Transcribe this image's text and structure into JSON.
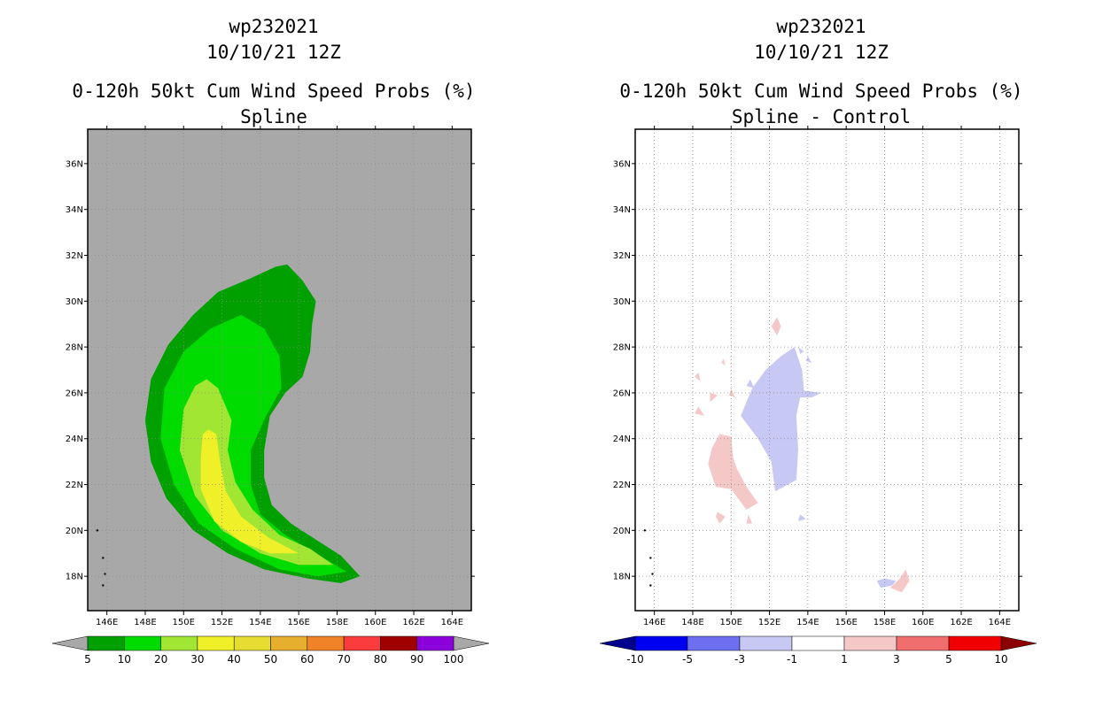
{
  "chart_data": [
    {
      "type": "contour_map",
      "storm_id": "wp232021",
      "date": "10/10/21 12Z",
      "title": "0-120h 50kt Cum Wind Speed Probs (%)",
      "subtitle": "Spline",
      "xlim": [
        145,
        165
      ],
      "ylim": [
        16.5,
        37.5
      ],
      "x_ticks": [
        "146E",
        "148E",
        "150E",
        "152E",
        "154E",
        "156E",
        "158E",
        "160E",
        "162E",
        "164E"
      ],
      "x_tick_values": [
        146,
        148,
        150,
        152,
        154,
        156,
        158,
        160,
        162,
        164
      ],
      "y_ticks": [
        "36N",
        "34N",
        "32N",
        "30N",
        "28N",
        "26N",
        "24N",
        "22N",
        "20N",
        "18N"
      ],
      "y_tick_values": [
        36,
        34,
        32,
        30,
        28,
        26,
        24,
        22,
        20,
        18
      ],
      "grid": true,
      "background": "#a8a8a8",
      "colorbar": {
        "labels": [
          "5",
          "10",
          "20",
          "30",
          "40",
          "50",
          "60",
          "70",
          "80",
          "90",
          "100"
        ],
        "colors": [
          "#00a000",
          "#00dc00",
          "#a0e632",
          "#f0f028",
          "#e6dc32",
          "#e6af2d",
          "#f08228",
          "#fa3c3c",
          "#a00000",
          "#8c00dc"
        ],
        "extension_color": "#a8a8a8"
      },
      "contours": [
        {
          "level": 5,
          "color": "#00a000",
          "polygon": [
            [
              155.4,
              31.6
            ],
            [
              156.2,
              30.9
            ],
            [
              156.9,
              30.0
            ],
            [
              156.7,
              29.0
            ],
            [
              156.6,
              27.8
            ],
            [
              156.2,
              26.7
            ],
            [
              155.3,
              26.0
            ],
            [
              154.5,
              25.0
            ],
            [
              154.2,
              23.5
            ],
            [
              154.2,
              22.3
            ],
            [
              154.6,
              21.1
            ],
            [
              155.6,
              20.3
            ],
            [
              156.9,
              19.6
            ],
            [
              158.2,
              18.9
            ],
            [
              159.2,
              18.0
            ],
            [
              158.2,
              17.7
            ],
            [
              156.5,
              17.9
            ],
            [
              154.2,
              18.3
            ],
            [
              152.3,
              19.0
            ],
            [
              150.5,
              20.0
            ],
            [
              149.1,
              21.4
            ],
            [
              148.3,
              23.0
            ],
            [
              148.0,
              24.8
            ],
            [
              148.3,
              26.6
            ],
            [
              149.2,
              28.1
            ],
            [
              150.5,
              29.4
            ],
            [
              151.8,
              30.4
            ],
            [
              153.5,
              31.0
            ],
            [
              154.8,
              31.5
            ]
          ]
        },
        {
          "level": 10,
          "color": "#00dc00",
          "polygon": [
            [
              153.0,
              29.4
            ],
            [
              154.2,
              28.8
            ],
            [
              155.0,
              27.6
            ],
            [
              155.1,
              26.2
            ],
            [
              154.3,
              25.0
            ],
            [
              153.5,
              23.5
            ],
            [
              153.5,
              22.0
            ],
            [
              154.0,
              20.7
            ],
            [
              155.3,
              19.8
            ],
            [
              156.9,
              19.0
            ],
            [
              158.5,
              18.2
            ],
            [
              157.0,
              18.0
            ],
            [
              155.0,
              18.3
            ],
            [
              152.7,
              19.2
            ],
            [
              150.8,
              20.3
            ],
            [
              149.5,
              22.0
            ],
            [
              148.8,
              24.0
            ],
            [
              149.0,
              26.2
            ],
            [
              150.0,
              27.8
            ],
            [
              151.4,
              28.8
            ]
          ]
        },
        {
          "level": 20,
          "color": "#a0e632",
          "polygon": [
            [
              151.2,
              26.6
            ],
            [
              151.8,
              26.2
            ],
            [
              152.5,
              24.8
            ],
            [
              152.3,
              23.5
            ],
            [
              152.7,
              22.1
            ],
            [
              153.6,
              20.9
            ],
            [
              155.0,
              19.8
            ],
            [
              156.6,
              19.2
            ],
            [
              157.8,
              18.5
            ],
            [
              156.0,
              18.5
            ],
            [
              154.0,
              19.0
            ],
            [
              152.0,
              20.0
            ],
            [
              150.6,
              21.5
            ],
            [
              149.8,
              23.5
            ],
            [
              150.0,
              25.3
            ],
            [
              150.6,
              26.3
            ]
          ]
        },
        {
          "level": 30,
          "color": "#f0f028",
          "polygon": [
            [
              151.3,
              24.4
            ],
            [
              151.7,
              24.2
            ],
            [
              151.9,
              23.0
            ],
            [
              152.2,
              21.7
            ],
            [
              153.0,
              20.6
            ],
            [
              154.4,
              19.7
            ],
            [
              156.0,
              19.0
            ],
            [
              154.5,
              19.0
            ],
            [
              153.0,
              19.5
            ],
            [
              151.6,
              20.4
            ],
            [
              150.9,
              21.8
            ],
            [
              150.9,
              23.2
            ],
            [
              151.0,
              24.2
            ]
          ]
        }
      ]
    },
    {
      "type": "contour_map",
      "storm_id": "wp232021",
      "date": "10/10/21 12Z",
      "title": "0-120h 50kt Cum Wind Speed Probs (%)",
      "subtitle": "Spline - Control",
      "xlim": [
        145,
        165
      ],
      "ylim": [
        16.5,
        37.5
      ],
      "x_ticks": [
        "146E",
        "148E",
        "150E",
        "152E",
        "154E",
        "156E",
        "158E",
        "160E",
        "162E",
        "164E"
      ],
      "x_tick_values": [
        146,
        148,
        150,
        152,
        154,
        156,
        158,
        160,
        162,
        164
      ],
      "y_ticks": [
        "36N",
        "34N",
        "32N",
        "30N",
        "28N",
        "26N",
        "24N",
        "22N",
        "20N",
        "18N"
      ],
      "y_tick_values": [
        36,
        34,
        32,
        30,
        28,
        26,
        24,
        22,
        20,
        18
      ],
      "grid": true,
      "background": "#ffffff",
      "colorbar": {
        "labels": [
          "-10",
          "-5",
          "-3",
          "-1",
          "1",
          "3",
          "5",
          "10"
        ],
        "colors": [
          "#0000f0",
          "#6e6ef0",
          "#c8c8f5",
          "#ffffff",
          "#f5c8c8",
          "#f06e6e",
          "#f00000"
        ],
        "low_extension_color": "#00008c",
        "high_extension_color": "#8c0000"
      },
      "contours": [
        {
          "level": -3,
          "color": "#c8c8f5",
          "polygon": [
            [
              153.3,
              28.0
            ],
            [
              153.7,
              27.0
            ],
            [
              153.8,
              26.1
            ],
            [
              154.7,
              26.0
            ],
            [
              154.2,
              25.8
            ],
            [
              153.6,
              25.8
            ],
            [
              153.4,
              25.0
            ],
            [
              153.5,
              23.5
            ],
            [
              153.4,
              22.2
            ],
            [
              152.3,
              21.7
            ],
            [
              152.1,
              23.0
            ],
            [
              151.4,
              24.0
            ],
            [
              150.5,
              25.0
            ],
            [
              151.1,
              26.2
            ],
            [
              151.8,
              27.0
            ],
            [
              152.6,
              27.6
            ]
          ]
        },
        {
          "level": -3,
          "color": "#c8c8f5",
          "polygon": [
            [
              158.0,
              17.9
            ],
            [
              158.6,
              17.8
            ],
            [
              158.4,
              17.6
            ],
            [
              157.8,
              17.5
            ],
            [
              157.6,
              17.8
            ]
          ]
        },
        {
          "level": -3,
          "color": "#c8c8f5",
          "polygon": [
            [
              153.6,
              20.7
            ],
            [
              153.9,
              20.5
            ],
            [
              153.5,
              20.4
            ]
          ]
        },
        {
          "level": -3,
          "color": "#c8c8f5",
          "polygon": [
            [
              153.5,
              28.0
            ],
            [
              153.8,
              27.8
            ],
            [
              153.6,
              27.7
            ]
          ]
        },
        {
          "level": -3,
          "color": "#c8c8f5",
          "polygon": [
            [
              154.0,
              27.6
            ],
            [
              154.2,
              27.3
            ],
            [
              153.9,
              27.4
            ]
          ]
        },
        {
          "level": -3,
          "color": "#c8c8f5",
          "polygon": [
            [
              151.0,
              26.6
            ],
            [
              151.2,
              26.2
            ],
            [
              150.8,
              26.3
            ]
          ]
        },
        {
          "level": 3,
          "color": "#f5c8c8",
          "polygon": [
            [
              149.4,
              24.2
            ],
            [
              150.0,
              24.1
            ],
            [
              150.1,
              23.2
            ],
            [
              150.3,
              22.7
            ],
            [
              150.8,
              21.9
            ],
            [
              151.4,
              21.2
            ],
            [
              150.8,
              20.9
            ],
            [
              150.0,
              21.8
            ],
            [
              149.2,
              21.9
            ],
            [
              148.8,
              22.9
            ],
            [
              149.0,
              23.6
            ]
          ]
        },
        {
          "level": 3,
          "color": "#f5c8c8",
          "polygon": [
            [
              152.4,
              29.3
            ],
            [
              152.6,
              28.9
            ],
            [
              152.4,
              28.5
            ],
            [
              152.1,
              28.9
            ]
          ]
        },
        {
          "level": 3,
          "color": "#f5c8c8",
          "polygon": [
            [
              159.1,
              18.3
            ],
            [
              159.3,
              17.8
            ],
            [
              158.9,
              17.3
            ],
            [
              158.3,
              17.5
            ],
            [
              158.8,
              17.9
            ]
          ]
        },
        {
          "level": 3,
          "color": "#f5c8c8",
          "polygon": [
            [
              149.3,
              20.8
            ],
            [
              149.7,
              20.6
            ],
            [
              149.4,
              20.3
            ],
            [
              149.2,
              20.6
            ]
          ]
        },
        {
          "level": 3,
          "color": "#f5c8c8",
          "polygon": [
            [
              150.9,
              20.7
            ],
            [
              151.1,
              20.3
            ],
            [
              150.8,
              20.3
            ]
          ]
        },
        {
          "level": 3,
          "color": "#f5c8c8",
          "polygon": [
            [
              148.3,
              25.4
            ],
            [
              148.6,
              25.0
            ],
            [
              148.1,
              25.1
            ]
          ]
        },
        {
          "level": 3,
          "color": "#f5c8c8",
          "polygon": [
            [
              148.9,
              26.0
            ],
            [
              149.3,
              25.9
            ],
            [
              148.9,
              25.6
            ]
          ]
        },
        {
          "level": 3,
          "color": "#f5c8c8",
          "polygon": [
            [
              150.0,
              26.2
            ],
            [
              150.2,
              25.8
            ],
            [
              149.9,
              25.9
            ]
          ]
        },
        {
          "level": 3,
          "color": "#f5c8c8",
          "polygon": [
            [
              148.3,
              26.9
            ],
            [
              148.4,
              26.5
            ],
            [
              148.1,
              26.7
            ]
          ]
        },
        {
          "level": 3,
          "color": "#f5c8c8",
          "polygon": [
            [
              149.6,
              27.5
            ],
            [
              149.7,
              27.2
            ],
            [
              149.5,
              27.3
            ]
          ]
        }
      ]
    }
  ]
}
